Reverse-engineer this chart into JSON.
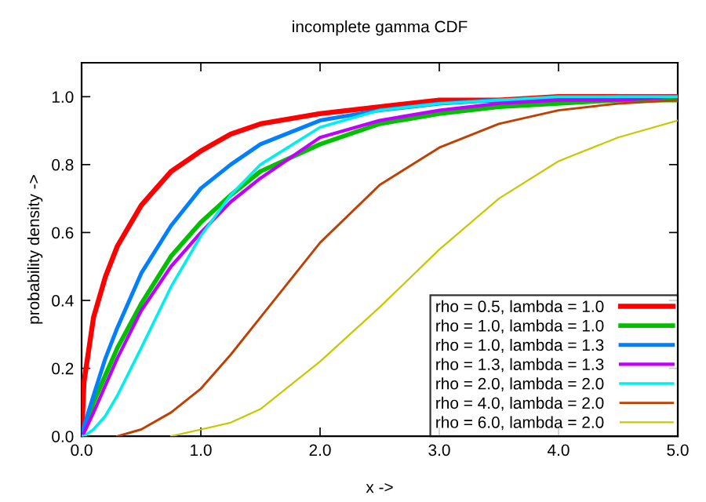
{
  "chart_data": {
    "type": "line",
    "title": "incomplete gamma CDF",
    "xlabel": "x ->",
    "ylabel": "probability density ->",
    "x": [
      0,
      0.02,
      0.1,
      0.2,
      0.3,
      0.5,
      0.75,
      1,
      1.25,
      1.5,
      2,
      2.5,
      3,
      3.5,
      4,
      4.5,
      5
    ],
    "series": [
      {
        "name": "rho = 0.5, lambda = 1.0",
        "color": "#ff0000",
        "values": [
          0,
          0.16,
          0.35,
          0.47,
          0.56,
          0.68,
          0.78,
          0.84,
          0.89,
          0.92,
          0.95,
          0.97,
          0.99,
          0.99,
          1.0,
          1.0,
          1.0
        ]
      },
      {
        "name": "rho = 1.0, lambda = 1.0",
        "color": "#00c000",
        "values": [
          0,
          0.02,
          0.1,
          0.18,
          0.26,
          0.39,
          0.53,
          0.63,
          0.71,
          0.78,
          0.86,
          0.92,
          0.95,
          0.97,
          0.98,
          0.99,
          0.99
        ]
      },
      {
        "name": "rho = 1.0, lambda = 1.3",
        "color": "#0080ff",
        "values": [
          0,
          0.03,
          0.12,
          0.23,
          0.32,
          0.48,
          0.62,
          0.73,
          0.8,
          0.86,
          0.93,
          0.96,
          0.98,
          0.99,
          0.99,
          1.0,
          1.0
        ]
      },
      {
        "name": "rho = 1.3, lambda = 1.3",
        "color": "#c000ff",
        "values": [
          0,
          0.01,
          0.07,
          0.15,
          0.23,
          0.37,
          0.5,
          0.6,
          0.69,
          0.76,
          0.88,
          0.93,
          0.96,
          0.98,
          0.99,
          0.99,
          1.0
        ]
      },
      {
        "name": "rho = 2.0, lambda = 2.0",
        "color": "#00eeee",
        "values": [
          0,
          0.0,
          0.02,
          0.06,
          0.12,
          0.26,
          0.44,
          0.59,
          0.71,
          0.8,
          0.91,
          0.96,
          0.98,
          0.99,
          1.0,
          1.0,
          1.0
        ]
      },
      {
        "name": "rho = 4.0, lambda = 2.0",
        "color": "#c04000",
        "values": [
          null,
          null,
          null,
          null,
          0.0,
          0.02,
          0.07,
          0.14,
          0.24,
          0.35,
          0.57,
          0.74,
          0.85,
          0.92,
          0.96,
          0.98,
          0.99
        ]
      },
      {
        "name": "rho = 6.0, lambda = 2.0",
        "color": "#c8c800",
        "values": [
          null,
          null,
          null,
          null,
          null,
          null,
          0.0,
          0.02,
          0.04,
          0.08,
          0.22,
          0.38,
          0.55,
          0.7,
          0.81,
          0.88,
          0.93
        ]
      }
    ],
    "xlim": [
      0,
      5
    ],
    "ylim": [
      0,
      1.1
    ],
    "xticks": [
      {
        "value": 0,
        "label": "0.0"
      },
      {
        "value": 1,
        "label": "1.0"
      },
      {
        "value": 2,
        "label": "2.0"
      },
      {
        "value": 3,
        "label": "3.0"
      },
      {
        "value": 4,
        "label": "4.0"
      },
      {
        "value": 5,
        "label": "5.0"
      }
    ],
    "yticks": [
      {
        "value": 0,
        "label": "0.0"
      },
      {
        "value": 0.2,
        "label": "0.2"
      },
      {
        "value": 0.4,
        "label": "0.4"
      },
      {
        "value": 0.6,
        "label": "0.6"
      },
      {
        "value": 0.8,
        "label": "0.8"
      },
      {
        "value": 1.0,
        "label": "1.0"
      }
    ],
    "grid": false,
    "legend": "bottom right",
    "marker": "none",
    "line_style": "solid"
  }
}
